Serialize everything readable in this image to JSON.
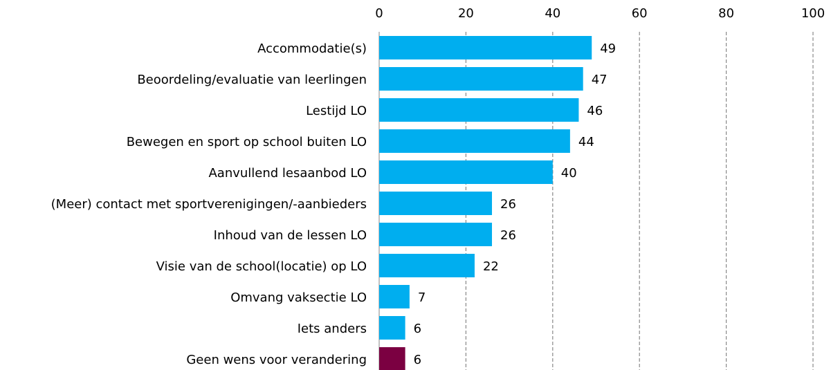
{
  "chart_data": {
    "type": "bar",
    "orientation": "horizontal",
    "categories": [
      "Accommodatie(s)",
      "Beoordeling/evaluatie van leerlingen",
      "Lestijd LO",
      "Bewegen en sport op school buiten LO",
      "Aanvullend lesaanbod LO",
      "(Meer) contact met sportverenigingen/-aanbieders",
      "Inhoud van de lessen LO",
      "Visie van de school(locatie) op LO",
      "Omvang vaksectie LO",
      "Iets anders",
      "Geen wens voor verandering"
    ],
    "values": [
      49,
      47,
      46,
      44,
      40,
      26,
      26,
      22,
      7,
      6,
      6
    ],
    "colors": [
      "#00aeef",
      "#00aeef",
      "#00aeef",
      "#00aeef",
      "#00aeef",
      "#00aeef",
      "#00aeef",
      "#00aeef",
      "#00aeef",
      "#00aeef",
      "#7b0041"
    ],
    "xlim": [
      0,
      100
    ],
    "xticks": [
      0,
      20,
      40,
      60,
      80,
      100
    ],
    "grid": true
  }
}
